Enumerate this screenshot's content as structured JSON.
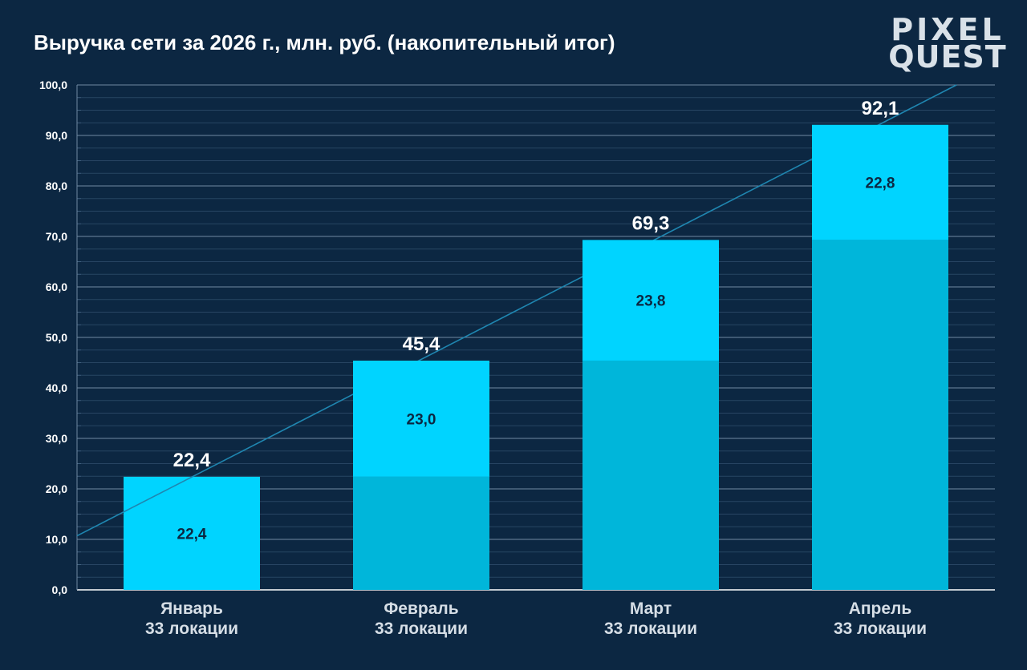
{
  "header": {
    "title": "Выручка сети за 2026 г., млн. руб. (накопительный итог)"
  },
  "logo": {
    "line1": "PIXEL",
    "line2": "QUEST"
  },
  "colors": {
    "background": "#0c2742",
    "increment": "#00d4ff",
    "base": "#00b6da",
    "trend": "#1f86b0",
    "grid": "#3f5f7e",
    "axis_text": "#ffffff",
    "value_text": "#0c2742"
  },
  "chart_data": {
    "type": "bar",
    "stacked": true,
    "title": "Выручка сети за 2026 г., млн. руб. (накопительный итог)",
    "categories": [
      "Январь",
      "Февраль",
      "Март",
      "Апрель"
    ],
    "category_sublabels": [
      "33 локации",
      "33 локации",
      "33 локации",
      "33 локации"
    ],
    "series": [
      {
        "values": [
          0,
          22.4,
          45.4,
          69.3
        ]
      },
      {
        "values": [
          22.4,
          23.0,
          23.8,
          22.8
        ]
      }
    ],
    "totals": [
      22.4,
      45.4,
      69.3,
      92.1
    ],
    "segment_labels": [
      "22,4",
      "23,0",
      "23,8",
      "22,8"
    ],
    "total_labels": [
      "22,4",
      "45,4",
      "69,3",
      "92,1"
    ],
    "y_ticks": [
      "0,0",
      "10,0",
      "20,0",
      "30,0",
      "40,0",
      "50,0",
      "60,0",
      "70,0",
      "80,0",
      "90,0",
      "100,0"
    ],
    "ylim": [
      0,
      100
    ],
    "trendline": true,
    "grid": true
  }
}
